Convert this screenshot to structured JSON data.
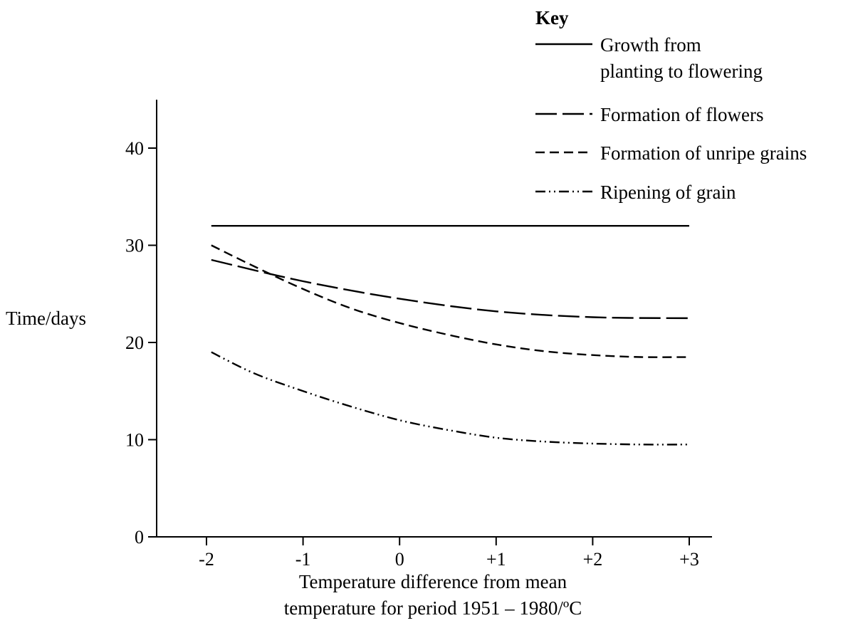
{
  "chart_data": {
    "type": "line",
    "title": "",
    "xlabel": [
      "Temperature difference from mean",
      "temperature for period 1951 – 1980/ºC"
    ],
    "ylabel": "Time/days",
    "x_ticks": [
      -2,
      -1,
      0,
      1,
      2,
      3
    ],
    "x_tick_labels": [
      "-2",
      "-1",
      "0",
      "+1",
      "+2",
      "+3"
    ],
    "y_ticks": [
      0,
      10,
      20,
      30,
      40
    ],
    "y_tick_labels": [
      "0",
      "10",
      "20",
      "30",
      "40"
    ],
    "xlim": [
      -2.5,
      3.25
    ],
    "ylim": [
      0,
      45
    ],
    "grid": false,
    "legend": {
      "title": "Key",
      "placement": "top-right"
    },
    "series": [
      {
        "name": [
          "Growth from",
          "planting to flowering"
        ],
        "style": "solid",
        "x": [
          -1.95,
          -1,
          0,
          1,
          2,
          3
        ],
        "y": [
          32,
          32,
          32,
          32,
          32,
          32
        ]
      },
      {
        "name": [
          "Formation of flowers"
        ],
        "style": "long-dash",
        "x": [
          -1.95,
          -1,
          0,
          1,
          2,
          3
        ],
        "y": [
          28.5,
          26.3,
          24.5,
          23.2,
          22.6,
          22.5
        ]
      },
      {
        "name": [
          "Formation of unripe grains"
        ],
        "style": "short-dash",
        "x": [
          -1.95,
          -1.5,
          -1,
          -0.5,
          0,
          0.5,
          1,
          1.5,
          2,
          2.5,
          3
        ],
        "y": [
          30,
          27.8,
          25.5,
          23.5,
          22,
          20.8,
          19.8,
          19.1,
          18.7,
          18.5,
          18.5
        ]
      },
      {
        "name": [
          "Ripening of grain"
        ],
        "style": "dash-dot-dot",
        "x": [
          -1.95,
          -1.5,
          -1,
          -0.5,
          0,
          0.5,
          1,
          1.5,
          2,
          2.5,
          3
        ],
        "y": [
          19,
          16.8,
          15,
          13.4,
          12,
          11,
          10.2,
          9.8,
          9.6,
          9.5,
          9.5
        ]
      }
    ]
  }
}
